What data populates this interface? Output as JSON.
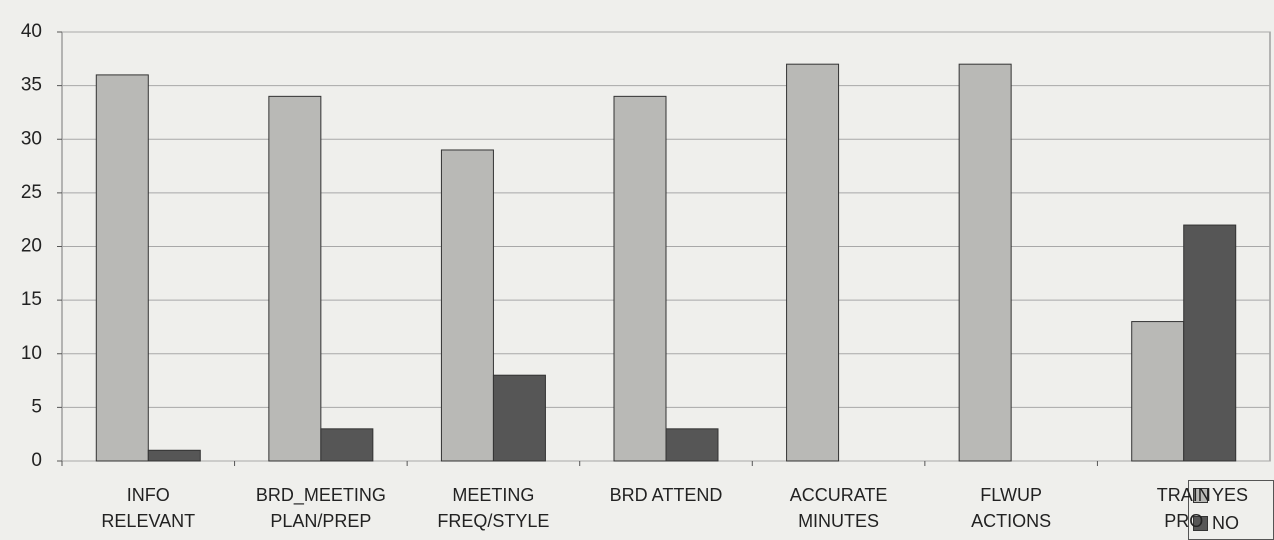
{
  "chart_data": {
    "type": "bar",
    "categories": [
      "INFO\nRELEVANT",
      "BRD_MEETING\nPLAN/PREP",
      "MEETING\nFREQ/STYLE",
      "BRD ATTEND",
      "ACCURATE\nMINUTES",
      "FLWUP\nACTIONS",
      "TRAIN\nPRO"
    ],
    "series": [
      {
        "name": "YES",
        "color": "#b9b9b6",
        "values": [
          36,
          34,
          29,
          34,
          37,
          37,
          13
        ]
      },
      {
        "name": "NO",
        "color": "#565656",
        "values": [
          1,
          3,
          8,
          3,
          0,
          0,
          22
        ]
      }
    ],
    "ylim": [
      0,
      40
    ],
    "yticks": [
      0,
      5,
      10,
      15,
      20,
      25,
      30,
      35,
      40
    ],
    "grid": true,
    "legend": "bottom-right"
  }
}
